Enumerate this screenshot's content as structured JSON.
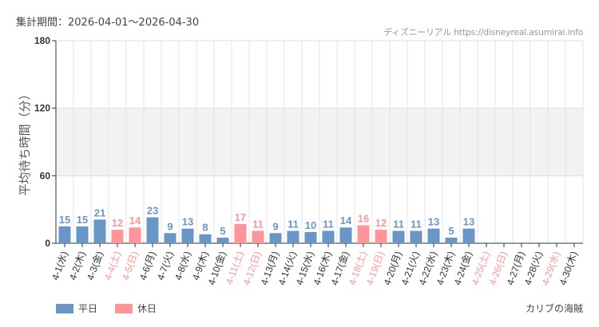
{
  "header": {
    "period": "集計期間：2026-04-01～2026-04-30",
    "site": "ディズニーリアル https://disneyreal.asumirai.info"
  },
  "legend": {
    "weekday": "平日",
    "holiday": "休日"
  },
  "park": "カリブの海賊",
  "colors": {
    "weekday": "#6996c6",
    "holiday": "#ff9499",
    "band": "#f2f2f2"
  },
  "chart_data": {
    "type": "bar",
    "title": "",
    "ylabel": "平均待ち時間（分）",
    "xlabel": "",
    "ylim": [
      0,
      180
    ],
    "yticks": [
      0,
      60,
      120,
      180
    ],
    "band": [
      60,
      120
    ],
    "categories": [
      "4-1(水)",
      "4-2(木)",
      "4-3(金)",
      "4-4(土)",
      "4-5(日)",
      "4-6(月)",
      "4-7(火)",
      "4-8(水)",
      "4-9(木)",
      "4-10(金)",
      "4-11(土)",
      "4-12(日)",
      "4-13(月)",
      "4-14(火)",
      "4-15(水)",
      "4-16(木)",
      "4-17(金)",
      "4-18(土)",
      "4-19(日)",
      "4-20(月)",
      "4-21(火)",
      "4-22(水)",
      "4-23(木)",
      "4-24(金)",
      "4-25(土)",
      "4-26(日)",
      "4-27(月)",
      "4-28(火)",
      "4-29(水)",
      "4-30(木)"
    ],
    "holiday": [
      false,
      false,
      false,
      true,
      true,
      false,
      false,
      false,
      false,
      false,
      true,
      true,
      false,
      false,
      false,
      false,
      false,
      true,
      true,
      false,
      false,
      false,
      false,
      false,
      true,
      true,
      false,
      false,
      true,
      false
    ],
    "values": [
      15,
      15,
      21,
      12,
      14,
      23,
      9,
      13,
      8,
      5,
      17,
      11,
      9,
      11,
      10,
      11,
      14,
      16,
      12,
      11,
      11,
      13,
      5,
      13,
      null,
      null,
      null,
      null,
      null,
      null
    ]
  }
}
